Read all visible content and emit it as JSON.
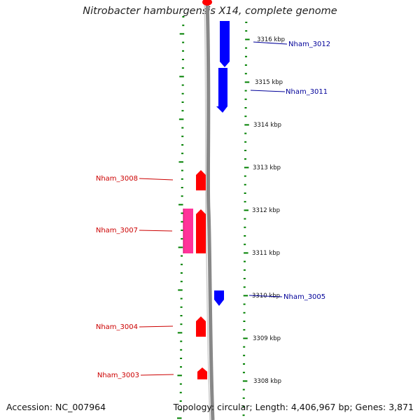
{
  "title": "Nitrobacter hamburgensis X14, complete genome",
  "footer": {
    "accession": "Accession: NC_007964",
    "summary": "Topology: circular; Length: 4,406,967 bp; Genes: 3,871"
  },
  "colors": {
    "forward_gene": "#ff0000",
    "reverse_gene": "#0000ff",
    "rna_gene": "#ff3399",
    "tick": "#008000",
    "backbone": "#888888"
  },
  "scale_labels": [
    "3316 kbp",
    "3315 kbp",
    "3314 kbp",
    "3313 kbp",
    "3312 kbp",
    "3311 kbp",
    "3310 kbp",
    "3309 kbp",
    "3308 kbp"
  ],
  "genes": [
    {
      "label": "Nham_3012",
      "strand": "reverse"
    },
    {
      "label": "Nham_3011",
      "strand": "reverse"
    },
    {
      "label": "Nham_3008",
      "strand": "forward"
    },
    {
      "label": "Nham_3007",
      "strand": "forward"
    },
    {
      "label": "Nham_3005",
      "strand": "reverse"
    },
    {
      "label": "Nham_3004",
      "strand": "forward"
    },
    {
      "label": "Nham_3003",
      "strand": "forward"
    }
  ]
}
